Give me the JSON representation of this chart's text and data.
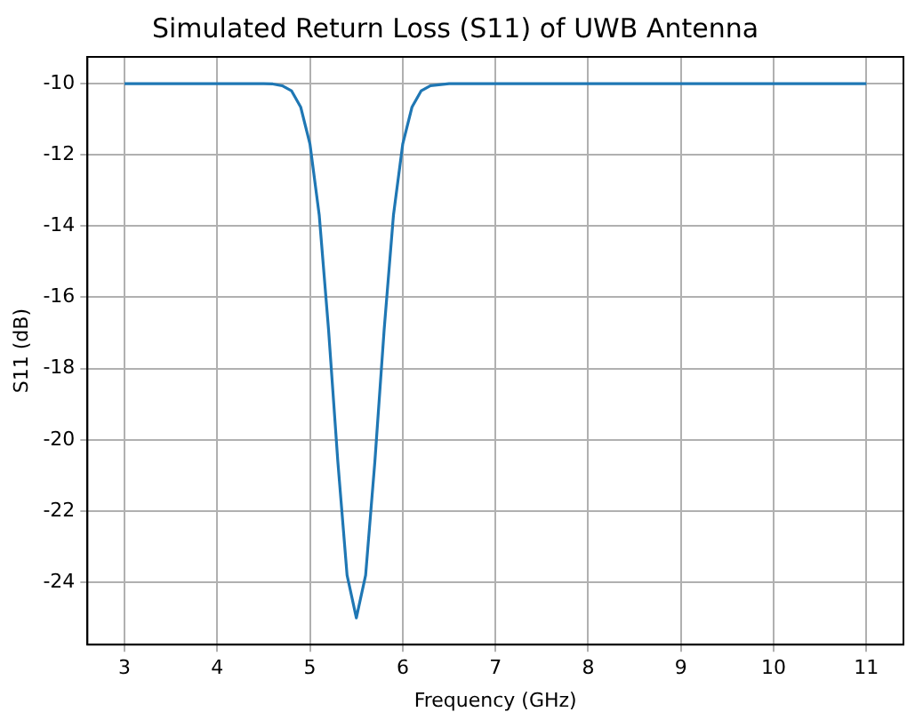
{
  "chart_data": {
    "type": "line",
    "title": "Simulated Return Loss (S11) of UWB Antenna",
    "xlabel": "Frequency (GHz)",
    "ylabel": "S11 (dB)",
    "x": [
      3,
      4,
      4.5,
      4.6,
      4.7,
      4.8,
      4.9,
      5.0,
      5.1,
      5.2,
      5.3,
      5.4,
      5.5,
      5.6,
      5.7,
      5.8,
      5.9,
      6.0,
      6.1,
      6.2,
      6.3,
      6.5,
      7,
      8,
      9,
      10,
      11
    ],
    "series": [
      {
        "color": "#1f77b4",
        "values": [
          -10,
          -10,
          -10,
          -10.01,
          -10.06,
          -10.2,
          -10.66,
          -11.7,
          -13.7,
          -16.9,
          -20.6,
          -23.8,
          -25,
          -23.8,
          -20.6,
          -16.9,
          -13.7,
          -11.7,
          -10.66,
          -10.2,
          -10.06,
          -10,
          -10,
          -10,
          -10,
          -10,
          -10
        ]
      }
    ],
    "xlim": [
      2.6,
      11.4
    ],
    "xticks": [
      3,
      4,
      5,
      6,
      7,
      8,
      9,
      10,
      11
    ],
    "ylim": [
      -25.75,
      -9.25
    ],
    "yticks": [
      -24,
      -22,
      -20,
      -18,
      -16,
      -14,
      -12,
      -10
    ],
    "grid": true,
    "legend": false,
    "marker": "none",
    "line_style": "solid"
  }
}
